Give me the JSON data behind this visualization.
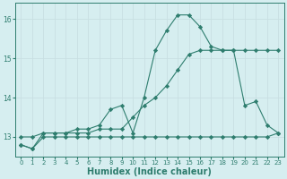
{
  "xlabel": "Humidex (Indice chaleur)",
  "bg_color": "#d6eef0",
  "line_color": "#2e7d6e",
  "grid_color": "#c8dfe2",
  "x_values": [
    0,
    1,
    2,
    3,
    4,
    5,
    6,
    7,
    8,
    9,
    10,
    11,
    12,
    13,
    14,
    15,
    16,
    17,
    18,
    19,
    20,
    21,
    22,
    23
  ],
  "y_main": [
    12.8,
    12.7,
    13.1,
    13.1,
    13.1,
    13.2,
    13.2,
    13.3,
    13.7,
    13.8,
    13.1,
    14.0,
    15.2,
    15.7,
    16.1,
    16.1,
    15.8,
    15.3,
    15.2,
    15.2,
    13.8,
    13.9,
    13.3,
    13.1
  ],
  "y_max": [
    13.0,
    13.0,
    13.1,
    13.1,
    13.1,
    13.1,
    13.1,
    13.2,
    13.2,
    13.2,
    13.5,
    13.8,
    14.0,
    14.3,
    14.7,
    15.1,
    15.2,
    15.2,
    15.2,
    15.2,
    15.2,
    15.2,
    15.2,
    15.2
  ],
  "y_min": [
    12.8,
    12.7,
    13.0,
    13.0,
    13.0,
    13.0,
    13.0,
    13.0,
    13.0,
    13.0,
    13.0,
    13.0,
    13.0,
    13.0,
    13.0,
    13.0,
    13.0,
    13.0,
    13.0,
    13.0,
    13.0,
    13.0,
    13.0,
    13.1
  ],
  "ylim": [
    12.5,
    16.4
  ],
  "yticks": [
    13,
    14,
    15,
    16
  ],
  "xticks": [
    0,
    1,
    2,
    3,
    4,
    5,
    6,
    7,
    8,
    9,
    10,
    11,
    12,
    13,
    14,
    15,
    16,
    17,
    18,
    19,
    20,
    21,
    22,
    23
  ],
  "label_fontsize": 7,
  "tick_fontsize": 5.5
}
